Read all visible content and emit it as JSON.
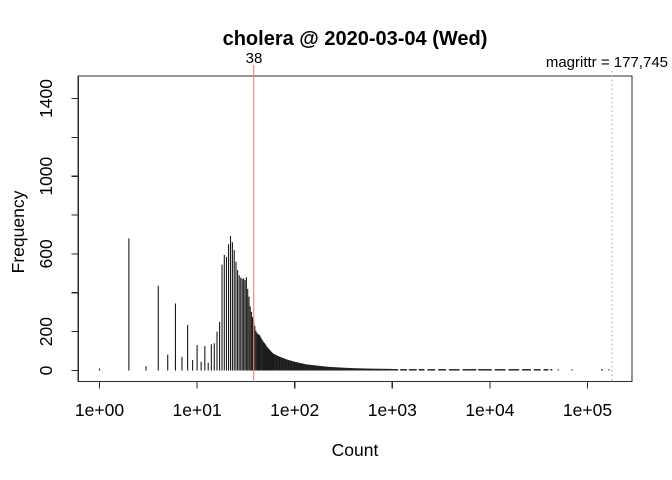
{
  "chart_data": {
    "type": "bar",
    "chart_kind": "histogram-log-x",
    "title": "cholera @ 2020-03-04 (Wed)",
    "xlabel": "Count",
    "ylabel": "Frequency",
    "x_scale": "log10",
    "xlim": [
      1,
      177745
    ],
    "ylim": [
      0,
      1400
    ],
    "grid": false,
    "bar_color": "#1a1a1a",
    "axis_color": "#2b2b2b",
    "x_ticks": [
      {
        "log10": 0,
        "label": "1e+00"
      },
      {
        "log10": 1,
        "label": "1e+01"
      },
      {
        "log10": 2,
        "label": "1e+02"
      },
      {
        "log10": 3,
        "label": "1e+03"
      },
      {
        "log10": 4,
        "label": "1e+04"
      },
      {
        "log10": 5,
        "label": "1e+05"
      }
    ],
    "y_ticks": [
      {
        "value": 0,
        "label": "0"
      },
      {
        "value": 200,
        "label": "200"
      },
      {
        "value": 400,
        "label": ""
      },
      {
        "value": 600,
        "label": "600"
      },
      {
        "value": 800,
        "label": ""
      },
      {
        "value": 1000,
        "label": "1000"
      },
      {
        "value": 1200,
        "label": ""
      },
      {
        "value": 1400,
        "label": "1400"
      }
    ],
    "bars": [
      [
        1,
        10
      ],
      [
        2,
        680
      ],
      [
        3,
        22
      ],
      [
        4,
        436
      ],
      [
        5,
        82
      ],
      [
        6,
        345
      ],
      [
        7,
        70
      ],
      [
        8,
        235
      ],
      [
        9,
        54
      ],
      [
        10,
        131
      ],
      [
        11,
        45
      ],
      [
        12,
        126
      ],
      [
        13,
        40
      ],
      [
        14,
        135
      ],
      [
        15,
        140
      ],
      [
        16,
        200
      ],
      [
        17,
        250
      ],
      [
        18,
        545
      ],
      [
        19,
        595
      ],
      [
        20,
        585
      ],
      [
        21,
        650
      ],
      [
        22,
        692
      ],
      [
        23,
        660
      ],
      [
        24,
        620
      ],
      [
        25,
        560
      ],
      [
        26,
        517
      ],
      [
        27,
        490
      ],
      [
        28,
        478
      ],
      [
        29,
        472
      ],
      [
        30,
        474
      ],
      [
        31,
        465
      ],
      [
        32,
        480
      ],
      [
        33,
        420
      ],
      [
        34,
        380
      ],
      [
        35,
        330
      ],
      [
        36,
        302
      ],
      [
        37,
        275
      ],
      [
        38,
        258
      ],
      [
        39,
        230
      ],
      [
        40,
        205
      ],
      [
        41,
        195
      ],
      [
        42,
        188
      ],
      [
        43,
        185
      ],
      [
        44,
        180
      ],
      [
        45,
        170
      ],
      [
        46,
        162
      ],
      [
        47,
        154
      ],
      [
        48,
        147
      ],
      [
        49,
        141
      ],
      [
        50,
        135
      ],
      [
        51,
        128
      ],
      [
        52,
        122
      ],
      [
        53,
        117
      ],
      [
        54,
        112
      ],
      [
        55,
        108
      ],
      [
        56,
        103
      ],
      [
        57,
        99
      ],
      [
        58,
        95
      ],
      [
        59,
        91
      ],
      [
        60,
        87
      ]
    ],
    "tail_anchors": [
      [
        60,
        87
      ],
      [
        70,
        71
      ],
      [
        85,
        55
      ],
      [
        100,
        45
      ],
      [
        130,
        32
      ],
      [
        170,
        25
      ],
      [
        220,
        19
      ],
      [
        300,
        15
      ],
      [
        400,
        12
      ],
      [
        550,
        10
      ],
      [
        700,
        9
      ],
      [
        1000,
        8
      ]
    ],
    "tail_dashes": [
      [
        3.0,
        3.06
      ],
      [
        3.08,
        3.15
      ],
      [
        3.17,
        3.25
      ],
      [
        3.27,
        3.33
      ],
      [
        3.36,
        3.44
      ],
      [
        3.47,
        3.55
      ],
      [
        3.58,
        3.69
      ],
      [
        3.72,
        3.86
      ],
      [
        3.88,
        4.02
      ],
      [
        4.05,
        4.16
      ],
      [
        4.19,
        4.3
      ],
      [
        4.33,
        4.42
      ],
      [
        4.45,
        4.52
      ],
      [
        4.55,
        4.6
      ],
      [
        4.62,
        4.64
      ],
      [
        4.695,
        4.705
      ],
      [
        4.835,
        4.845
      ],
      [
        5.14,
        5.155
      ],
      [
        5.215,
        5.225
      ]
    ],
    "markers": [
      {
        "kind": "vline",
        "value": 38,
        "label": "38",
        "style": "solid",
        "color": "#ee3a2c",
        "line_color": "#f57d7d"
      },
      {
        "kind": "vline",
        "value": 177745,
        "label": "magrittr = 177,745",
        "style": "dotted",
        "color": "#2a6de0",
        "line_color": "#7aa7ef"
      }
    ]
  }
}
